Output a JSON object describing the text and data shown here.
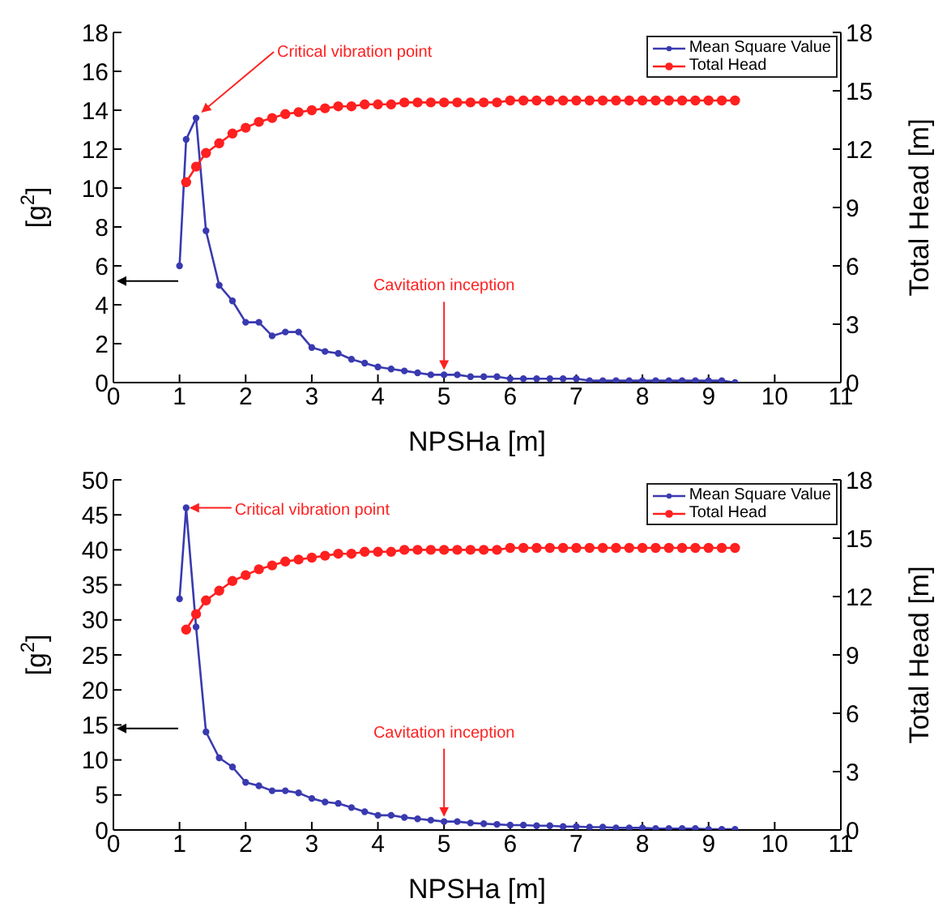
{
  "chart_data": [
    {
      "type": "line",
      "xlabel": "NPSHa  [m]",
      "ylabel": "[g$^{2}$]",
      "y2label": "Total Head [m]",
      "xlim": [
        0,
        11
      ],
      "xticks": [
        0,
        1,
        2,
        3,
        4,
        5,
        6,
        7,
        8,
        9,
        10,
        11
      ],
      "ylim": [
        0,
        18
      ],
      "yticks": [
        0,
        2,
        4,
        6,
        8,
        10,
        12,
        14,
        16,
        18
      ],
      "y2lim": [
        0,
        18
      ],
      "y2ticks": [
        0,
        3,
        6,
        9,
        12,
        15,
        18
      ],
      "grid": false,
      "legend": "top right",
      "marker": "circle",
      "annotations": [
        {
          "text": "Critical vibration point",
          "x": 1.25,
          "y": 13.6
        },
        {
          "text": "Cavitation inception",
          "x": 5,
          "y": 0.4
        }
      ],
      "series": [
        {
          "name": "Mean Square Value",
          "color": "#3a3ab0",
          "x": [
            1.0,
            1.1,
            1.25,
            1.4,
            1.6,
            1.8,
            2.0,
            2.2,
            2.4,
            2.6,
            2.8,
            3.0,
            3.2,
            3.4,
            3.6,
            3.8,
            4.0,
            4.2,
            4.4,
            4.6,
            4.8,
            5.0,
            5.2,
            5.4,
            5.6,
            5.8,
            6.0,
            6.2,
            6.4,
            6.6,
            6.8,
            7.0,
            7.2,
            7.4,
            7.6,
            7.8,
            8.0,
            8.2,
            8.4,
            8.6,
            8.8,
            9.0,
            9.2,
            9.4
          ],
          "values": [
            6,
            12.5,
            13.6,
            7.8,
            5.0,
            4.2,
            3.1,
            3.1,
            2.4,
            2.6,
            2.6,
            1.8,
            1.6,
            1.5,
            1.2,
            1.0,
            0.8,
            0.7,
            0.6,
            0.5,
            0.4,
            0.4,
            0.4,
            0.3,
            0.3,
            0.3,
            0.2,
            0.2,
            0.2,
            0.2,
            0.2,
            0.2,
            0.1,
            0.1,
            0.1,
            0.1,
            0.1,
            0.1,
            0.1,
            0.1,
            0.1,
            0.1,
            0.1,
            0.0
          ]
        },
        {
          "name": "Total Head",
          "color": "#ff2020",
          "axis": "y2",
          "x": [
            1.1,
            1.25,
            1.4,
            1.6,
            1.8,
            2.0,
            2.2,
            2.4,
            2.6,
            2.8,
            3.0,
            3.2,
            3.4,
            3.6,
            3.8,
            4.0,
            4.2,
            4.4,
            4.6,
            4.8,
            5.0,
            5.2,
            5.4,
            5.6,
            5.8,
            6.0,
            6.2,
            6.4,
            6.6,
            6.8,
            7.0,
            7.2,
            7.4,
            7.6,
            7.8,
            8.0,
            8.2,
            8.4,
            8.6,
            8.8,
            9.0,
            9.2,
            9.4
          ],
          "values": [
            10.3,
            11.1,
            11.8,
            12.3,
            12.8,
            13.1,
            13.4,
            13.6,
            13.8,
            13.9,
            14.0,
            14.1,
            14.2,
            14.2,
            14.3,
            14.3,
            14.3,
            14.4,
            14.4,
            14.4,
            14.4,
            14.4,
            14.4,
            14.4,
            14.4,
            14.5,
            14.5,
            14.5,
            14.5,
            14.5,
            14.5,
            14.5,
            14.5,
            14.5,
            14.5,
            14.5,
            14.5,
            14.5,
            14.5,
            14.5,
            14.5,
            14.5,
            14.5
          ]
        }
      ]
    },
    {
      "type": "line",
      "xlabel": "NPSHa  [m]",
      "ylabel": "[g$^{2}$]",
      "y2label": "Total Head [m]",
      "xlim": [
        0,
        11
      ],
      "xticks": [
        0,
        1,
        2,
        3,
        4,
        5,
        6,
        7,
        8,
        9,
        10,
        11
      ],
      "ylim": [
        0,
        50
      ],
      "yticks": [
        0,
        5,
        10,
        15,
        20,
        25,
        30,
        35,
        40,
        45,
        50
      ],
      "y2lim": [
        0,
        18
      ],
      "y2ticks": [
        0,
        3,
        6,
        9,
        12,
        15,
        18
      ],
      "grid": false,
      "legend": "top right",
      "marker": "circle",
      "annotations": [
        {
          "text": "Critical vibration point",
          "x": 1.1,
          "y": 46
        },
        {
          "text": "Cavitation inception",
          "x": 5,
          "y": 1.2
        }
      ],
      "series": [
        {
          "name": "Mean Square Value",
          "color": "#3a3ab0",
          "x": [
            1.0,
            1.1,
            1.25,
            1.4,
            1.6,
            1.8,
            2.0,
            2.2,
            2.4,
            2.6,
            2.8,
            3.0,
            3.2,
            3.4,
            3.6,
            3.8,
            4.0,
            4.2,
            4.4,
            4.6,
            4.8,
            5.0,
            5.2,
            5.4,
            5.6,
            5.8,
            6.0,
            6.2,
            6.4,
            6.6,
            6.8,
            7.0,
            7.2,
            7.4,
            7.6,
            7.8,
            8.0,
            8.2,
            8.4,
            8.6,
            8.8,
            9.0,
            9.2,
            9.4
          ],
          "values": [
            33,
            46,
            29,
            14,
            10.3,
            9,
            6.8,
            6.3,
            5.6,
            5.6,
            5.3,
            4.5,
            4.0,
            3.8,
            3.2,
            2.6,
            2.1,
            2.1,
            1.8,
            1.6,
            1.4,
            1.2,
            1.2,
            1.0,
            0.9,
            0.8,
            0.7,
            0.7,
            0.6,
            0.6,
            0.5,
            0.5,
            0.4,
            0.4,
            0.3,
            0.3,
            0.3,
            0.2,
            0.2,
            0.2,
            0.2,
            0.1,
            0.1,
            0.1
          ]
        },
        {
          "name": "Total Head",
          "color": "#ff2020",
          "axis": "y2",
          "x": [
            1.1,
            1.25,
            1.4,
            1.6,
            1.8,
            2.0,
            2.2,
            2.4,
            2.6,
            2.8,
            3.0,
            3.2,
            3.4,
            3.6,
            3.8,
            4.0,
            4.2,
            4.4,
            4.6,
            4.8,
            5.0,
            5.2,
            5.4,
            5.6,
            5.8,
            6.0,
            6.2,
            6.4,
            6.6,
            6.8,
            7.0,
            7.2,
            7.4,
            7.6,
            7.8,
            8.0,
            8.2,
            8.4,
            8.6,
            8.8,
            9.0,
            9.2,
            9.4
          ],
          "values": [
            10.3,
            11.1,
            11.8,
            12.3,
            12.8,
            13.1,
            13.4,
            13.6,
            13.8,
            13.9,
            14.0,
            14.1,
            14.2,
            14.2,
            14.3,
            14.3,
            14.3,
            14.4,
            14.4,
            14.4,
            14.4,
            14.4,
            14.4,
            14.4,
            14.4,
            14.5,
            14.5,
            14.5,
            14.5,
            14.5,
            14.5,
            14.5,
            14.5,
            14.5,
            14.5,
            14.5,
            14.5,
            14.5,
            14.5,
            14.5,
            14.5,
            14.5,
            14.5
          ]
        }
      ]
    }
  ]
}
